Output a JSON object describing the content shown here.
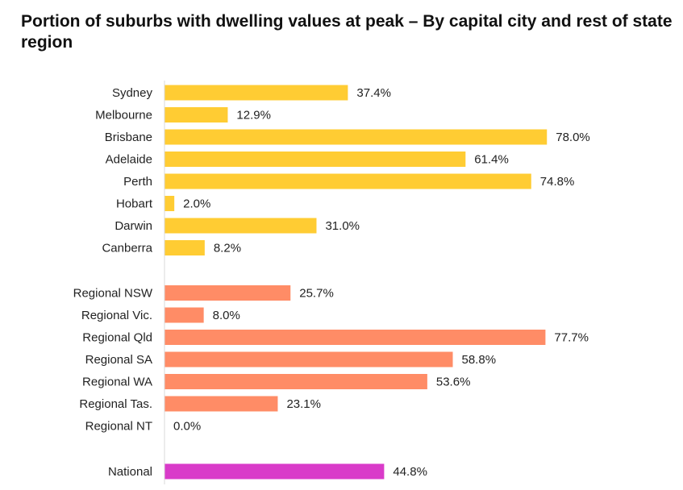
{
  "chart_data": {
    "type": "bar",
    "orientation": "horizontal",
    "title": "Portion of suburbs with dwelling values at peak – By capital city and rest of state region",
    "xlim": [
      0,
      100
    ],
    "grid": false,
    "legend": "none",
    "value_suffix": "%",
    "groups": [
      {
        "color": "#FFCC33",
        "categories": [
          "Sydney",
          "Melbourne",
          "Brisbane",
          "Adelaide",
          "Perth",
          "Hobart",
          "Darwin",
          "Canberra"
        ],
        "values": [
          37.4,
          12.9,
          78.0,
          61.4,
          74.8,
          2.0,
          31.0,
          8.2
        ],
        "labels": [
          "37.4%",
          "12.9%",
          "78.0%",
          "61.4%",
          "74.8%",
          "2.0%",
          "31.0%",
          "8.2%"
        ]
      },
      {
        "color": "#FF8C66",
        "categories": [
          "Regional NSW",
          "Regional Vic.",
          "Regional Qld",
          "Regional SA",
          "Regional WA",
          "Regional Tas.",
          "Regional NT"
        ],
        "values": [
          25.7,
          8.0,
          77.7,
          58.8,
          53.6,
          23.1,
          0.0
        ],
        "labels": [
          "25.7%",
          "8.0%",
          "77.7%",
          "58.8%",
          "53.6%",
          "23.1%",
          "0.0%"
        ]
      },
      {
        "color": "#D93BC9",
        "categories": [
          "National"
        ],
        "values": [
          44.8
        ],
        "labels": [
          "44.8%"
        ]
      }
    ]
  }
}
